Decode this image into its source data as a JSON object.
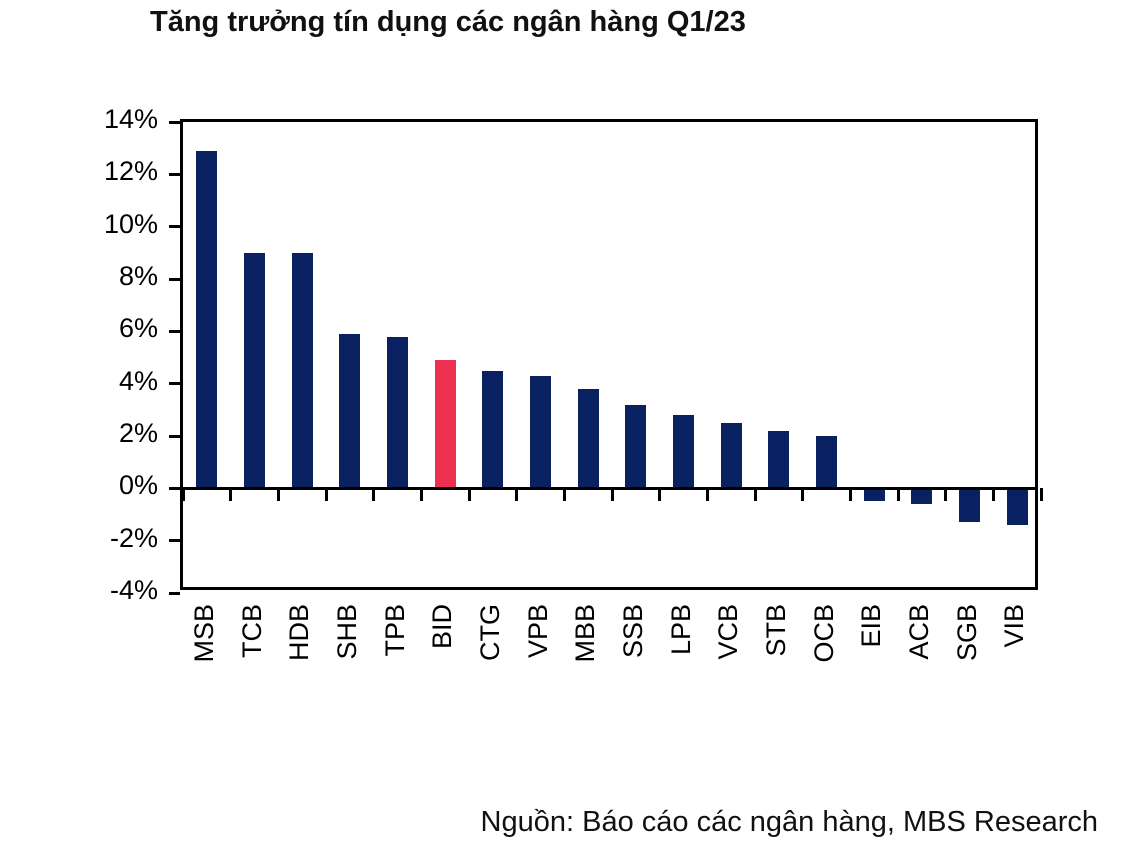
{
  "title": "Tăng trưởng tín dụng các ngân hàng Q1/23",
  "source": "Nguồn: Báo cáo các ngân hàng, MBS Research",
  "colors": {
    "bar": "#0a2161",
    "highlight": "#ec3150",
    "axis": "#000000",
    "text": "#111111"
  },
  "chart_data": {
    "type": "bar",
    "title": "Tăng trưởng tín dụng các ngân hàng Q1/23",
    "categories": [
      "MSB",
      "TCB",
      "HDB",
      "SHB",
      "TPB",
      "BID",
      "CTG",
      "VPB",
      "MBB",
      "SSB",
      "LPB",
      "VCB",
      "STB",
      "OCB",
      "EIB",
      "ACB",
      "SGB",
      "VIB"
    ],
    "values": [
      12.9,
      9.0,
      9.0,
      5.9,
      5.8,
      4.9,
      4.5,
      4.3,
      3.8,
      3.2,
      2.8,
      2.5,
      2.2,
      2.0,
      -0.5,
      -0.6,
      -1.3,
      -1.4
    ],
    "unit": "%",
    "highlight_category": "BID",
    "xlabel": "",
    "ylabel": "",
    "ylim": [
      -4,
      14
    ],
    "y_tick_step": 2,
    "y_tick_labels": [
      "14%",
      "12%",
      "10%",
      "8%",
      "6%",
      "4%",
      "2%",
      "0%",
      "-2%",
      "-4%"
    ],
    "y_tick_values": [
      14,
      12,
      10,
      8,
      6,
      4,
      2,
      0,
      -2,
      -4
    ],
    "grid": false,
    "legend": "none",
    "source": "Nguồn: Báo cáo các ngân hàng, MBS Research"
  }
}
